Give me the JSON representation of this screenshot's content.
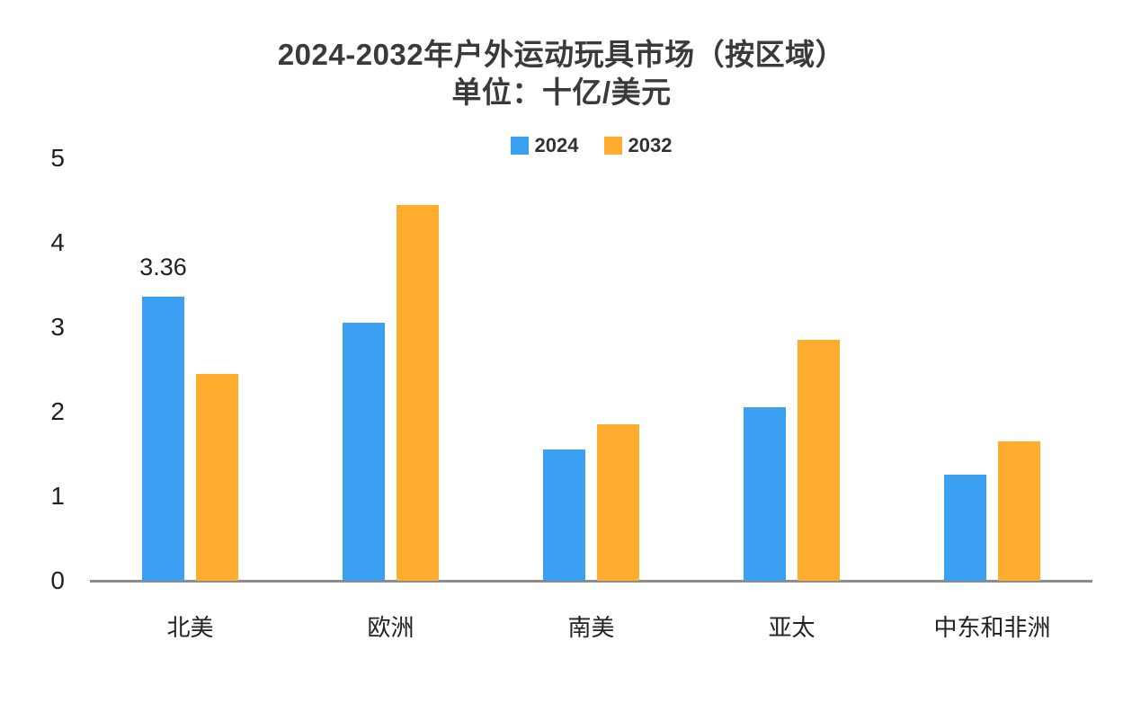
{
  "title": "2024-2032年户外运动玩具市场（按区域）",
  "subtitle": "单位：十亿/美元",
  "chart_data": {
    "type": "bar",
    "title": "2024-2032年户外运动玩具市场（按区域）",
    "subtitle": "单位：十亿/美元",
    "categories": [
      "北美",
      "欧洲",
      "南美",
      "亚太",
      "中东和非洲"
    ],
    "series": [
      {
        "name": "2024",
        "color": "#3B9FF2",
        "values": [
          3.36,
          3.05,
          1.55,
          2.05,
          1.25
        ]
      },
      {
        "name": "2032",
        "color": "#FFAC2F",
        "values": [
          2.45,
          4.45,
          1.85,
          2.85,
          1.65
        ]
      }
    ],
    "ylim": [
      0,
      5
    ],
    "yticks": [
      0,
      1,
      2,
      3,
      4,
      5
    ],
    "grid": false,
    "legend_position": "top-center",
    "data_labels": [
      {
        "series": 0,
        "category": 0,
        "text": "3.36"
      }
    ]
  },
  "colors": {
    "series_2024": "#3B9FF2",
    "series_2032": "#FFAC2F",
    "axis_line": "#8C8C8C",
    "text": "#3A3A3A"
  }
}
